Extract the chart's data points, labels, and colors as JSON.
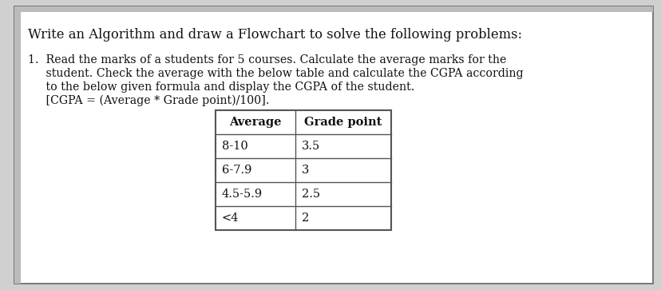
{
  "title": "Write an Algorithm and draw a Flowchart to solve the following problems:",
  "lines": [
    "1.  Read the marks of a students for 5 courses. Calculate the average marks for the",
    "     student. Check the average with the below table and calculate the CGPA according",
    "     to the below given formula and display the CGPA of the student.",
    "     [CGPA = (Average * Grade point)/100]."
  ],
  "table_headers": [
    "Average",
    "Grade point"
  ],
  "table_rows": [
    [
      "8-10",
      "3.5"
    ],
    [
      "6-7.9",
      "3"
    ],
    [
      "4.5-5.9",
      "2.5"
    ],
    [
      "<4",
      "2"
    ]
  ],
  "bg_color": "#ffffff",
  "outer_bg": "#d0d0d0",
  "border_color": "#666666",
  "text_color": "#111111",
  "table_border_color": "#555555",
  "font_size_title": 11.8,
  "font_size_body": 10.2,
  "font_size_table": 10.5
}
